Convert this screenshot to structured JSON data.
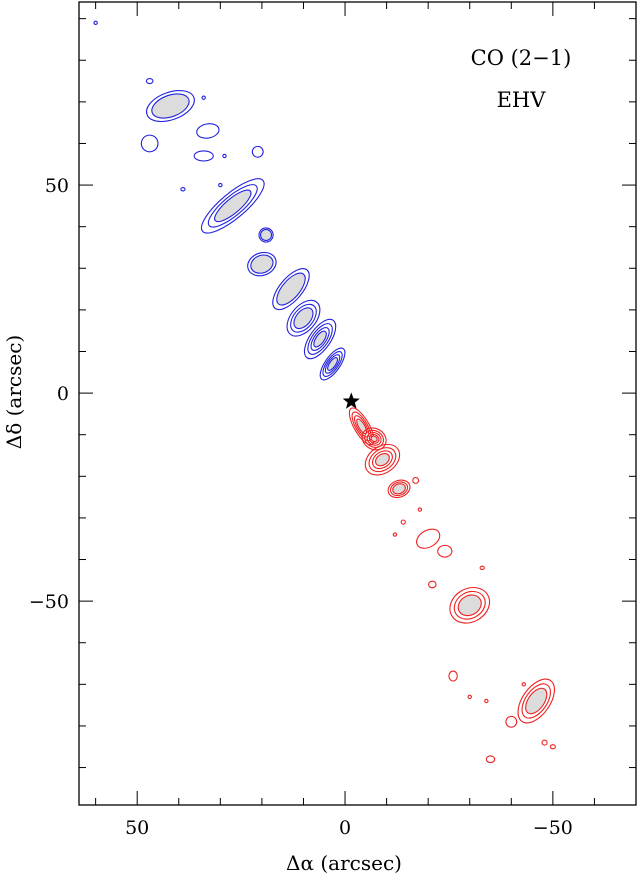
{
  "chart_data": {
    "type": "contour",
    "annotations": [
      "CO (2−1)",
      "EHV"
    ],
    "xlabel": "Δα (arcsec)",
    "ylabel": "Δδ (arcsec)",
    "xlim": [
      64,
      -70
    ],
    "ylim": [
      -99,
      94
    ],
    "x_ticks": [
      50,
      0,
      -50
    ],
    "x_tick_labels": [
      "50",
      "0",
      "−50"
    ],
    "y_ticks": [
      50,
      0,
      -50
    ],
    "y_tick_labels": [
      "50",
      "0",
      "−50"
    ],
    "grid": false,
    "source_marker": {
      "x": -1.5,
      "y": -2,
      "symbol": "star"
    },
    "series": [
      {
        "lobe": "blue",
        "color": "#2222dd",
        "fill": "#dcdcdc",
        "blobs": [
          {
            "x": 60,
            "y": 89,
            "rx": 0.4,
            "ry": 0.4,
            "rot": 0,
            "levels": 1
          },
          {
            "x": 42,
            "y": 69,
            "rx": 6,
            "ry": 3.3,
            "rot": -20,
            "levels": 2
          },
          {
            "x": 47,
            "y": 75,
            "rx": 0.8,
            "ry": 0.6,
            "rot": 0,
            "levels": 1
          },
          {
            "x": 34,
            "y": 71,
            "rx": 0.4,
            "ry": 0.4,
            "rot": 0,
            "levels": 1
          },
          {
            "x": 47,
            "y": 60,
            "rx": 2,
            "ry": 2,
            "rot": -20,
            "levels": 1
          },
          {
            "x": 33,
            "y": 63,
            "rx": 2.7,
            "ry": 1.7,
            "rot": -10,
            "levels": 1
          },
          {
            "x": 34,
            "y": 57,
            "rx": 2.3,
            "ry": 1.2,
            "rot": 0,
            "levels": 1
          },
          {
            "x": 29,
            "y": 57,
            "rx": 0.4,
            "ry": 0.4,
            "rot": 0,
            "levels": 1
          },
          {
            "x": 21,
            "y": 58,
            "rx": 1.3,
            "ry": 1.3,
            "rot": 0,
            "levels": 1
          },
          {
            "x": 39,
            "y": 49,
            "rx": 0.5,
            "ry": 0.4,
            "rot": 0,
            "levels": 1
          },
          {
            "x": 30,
            "y": 50,
            "rx": 0.4,
            "ry": 0.4,
            "rot": 0,
            "levels": 1
          },
          {
            "x": 27,
            "y": 45,
            "rx": 9.5,
            "ry": 3,
            "rot": -40,
            "levels": 3
          },
          {
            "x": 19,
            "y": 38,
            "rx": 1.7,
            "ry": 1.7,
            "rot": 0,
            "levels": 2
          },
          {
            "x": 20,
            "y": 31,
            "rx": 3.5,
            "ry": 2.7,
            "rot": -20,
            "levels": 2
          },
          {
            "x": 13,
            "y": 25,
            "rx": 6,
            "ry": 2.7,
            "rot": -50,
            "levels": 2
          },
          {
            "x": 10,
            "y": 18,
            "rx": 5,
            "ry": 3,
            "rot": -50,
            "levels": 3
          },
          {
            "x": 6,
            "y": 13,
            "rx": 5.5,
            "ry": 2.5,
            "rot": -55,
            "levels": 4
          },
          {
            "x": 3,
            "y": 7,
            "rx": 4.5,
            "ry": 1.8,
            "rot": -55,
            "levels": 4
          }
        ]
      },
      {
        "lobe": "red",
        "color": "#ee2222",
        "fill": "#dcdcdc",
        "blobs": [
          {
            "x": -4,
            "y": -8,
            "rx": 5,
            "ry": 1.8,
            "rot": 60,
            "levels": 4
          },
          {
            "x": -7,
            "y": -11,
            "rx": 3,
            "ry": 2.5,
            "rot": 30,
            "levels": 5
          },
          {
            "x": -9,
            "y": -16,
            "rx": 4.5,
            "ry": 3.2,
            "rot": -35,
            "levels": 4
          },
          {
            "x": -17,
            "y": -21,
            "rx": 0.7,
            "ry": 0.7,
            "rot": 0,
            "levels": 1
          },
          {
            "x": -13,
            "y": -23,
            "rx": 2.7,
            "ry": 2,
            "rot": -20,
            "levels": 3
          },
          {
            "x": -18,
            "y": -28,
            "rx": 0.4,
            "ry": 0.4,
            "rot": 0,
            "levels": 1
          },
          {
            "x": -14,
            "y": -31,
            "rx": 0.5,
            "ry": 0.5,
            "rot": 0,
            "levels": 1
          },
          {
            "x": -12,
            "y": -34,
            "rx": 0.4,
            "ry": 0.4,
            "rot": 0,
            "levels": 1
          },
          {
            "x": -20,
            "y": -35,
            "rx": 3,
            "ry": 2,
            "rot": -30,
            "levels": 1
          },
          {
            "x": -24,
            "y": -38,
            "rx": 1.7,
            "ry": 1.4,
            "rot": 0,
            "levels": 1
          },
          {
            "x": -21,
            "y": -46,
            "rx": 0.9,
            "ry": 0.8,
            "rot": 0,
            "levels": 1
          },
          {
            "x": -30,
            "y": -51,
            "rx": 5,
            "ry": 4,
            "rot": -30,
            "levels": 3
          },
          {
            "x": -33,
            "y": -42,
            "rx": 0.5,
            "ry": 0.4,
            "rot": 0,
            "levels": 1
          },
          {
            "x": -26,
            "y": -68,
            "rx": 1,
            "ry": 1.2,
            "rot": 0,
            "levels": 1
          },
          {
            "x": -30,
            "y": -73,
            "rx": 0.4,
            "ry": 0.4,
            "rot": 0,
            "levels": 1
          },
          {
            "x": -34,
            "y": -74,
            "rx": 0.4,
            "ry": 0.4,
            "rot": 0,
            "levels": 1
          },
          {
            "x": -43,
            "y": -70,
            "rx": 0.4,
            "ry": 0.4,
            "rot": 0,
            "levels": 1
          },
          {
            "x": -46,
            "y": -74,
            "rx": 6,
            "ry": 3.3,
            "rot": -55,
            "levels": 3
          },
          {
            "x": -40,
            "y": -79,
            "rx": 1.3,
            "ry": 1.3,
            "rot": 0,
            "levels": 1
          },
          {
            "x": -48,
            "y": -84,
            "rx": 0.6,
            "ry": 0.6,
            "rot": 0,
            "levels": 1
          },
          {
            "x": -50,
            "y": -85,
            "rx": 0.6,
            "ry": 0.5,
            "rot": 0,
            "levels": 1
          },
          {
            "x": -35,
            "y": -88,
            "rx": 1,
            "ry": 0.8,
            "rot": 0,
            "levels": 1
          }
        ]
      }
    ]
  }
}
